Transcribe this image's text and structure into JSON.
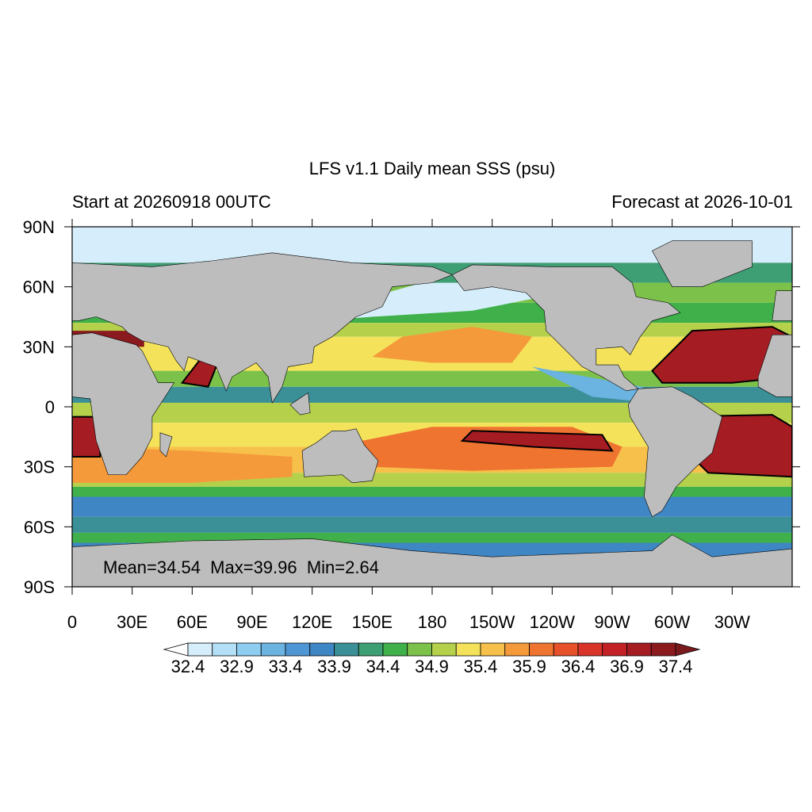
{
  "title": "LFS v1.1 Daily mean SSS (psu)",
  "left_subtitle": "Start at 20260918 00UTC",
  "right_subtitle": "Forecast at 2026-10-01",
  "lat_ticks": [
    "90N",
    "60N",
    "30N",
    "0",
    "30S",
    "60S",
    "90S"
  ],
  "lon_ticks": [
    "0",
    "30E",
    "60E",
    "90E",
    "120E",
    "150E",
    "180",
    "150W",
    "120W",
    "90W",
    "60W",
    "30W"
  ],
  "stats": "Mean=34.54  Max=39.96  Min=2.64",
  "colorbar": {
    "labels": [
      32.4,
      32.9,
      33.4,
      33.9,
      34.4,
      34.9,
      35.4,
      35.9,
      36.4,
      36.9,
      37.4
    ],
    "colors": [
      "#ffffff",
      "#d6eefb",
      "#b4e0f7",
      "#8ecdf0",
      "#6bb3e0",
      "#4f97d4",
      "#3f86c4",
      "#3b8f96",
      "#3e9e74",
      "#3fb04a",
      "#7cc24a",
      "#b5d14c",
      "#f4e35a",
      "#f7c04a",
      "#f59a3a",
      "#ef7430",
      "#e65129",
      "#d8342a",
      "#c42126",
      "#a51c23",
      "#8b1a1f",
      "#7a1a1d"
    ]
  }
}
